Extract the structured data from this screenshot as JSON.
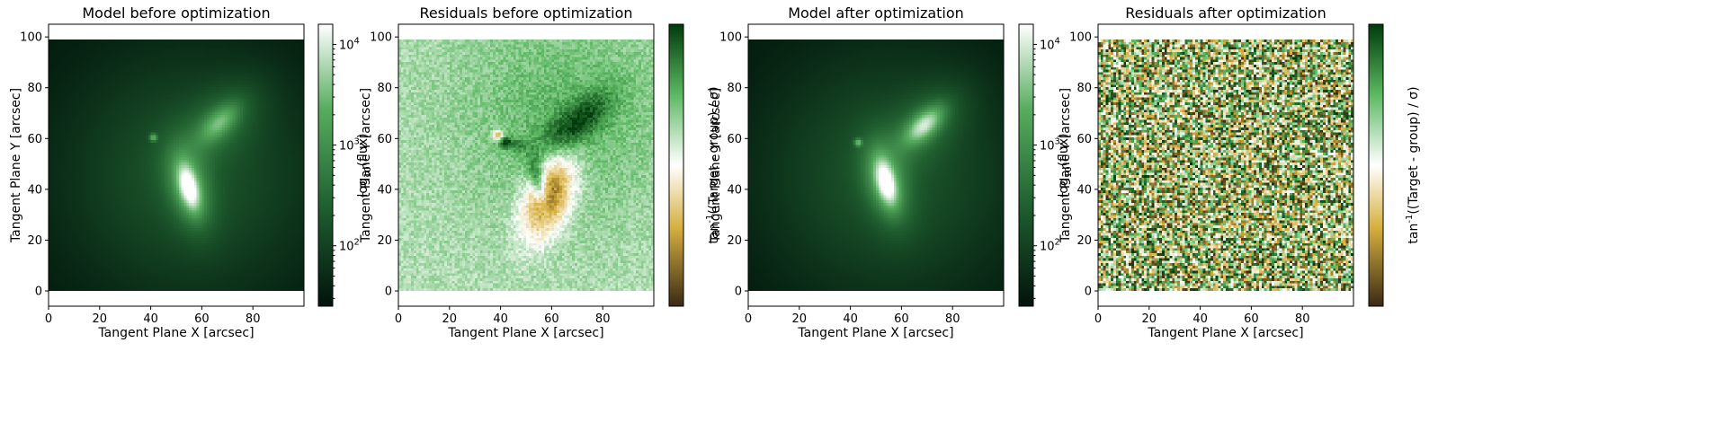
{
  "chart_data": [
    {
      "type": "heatmap",
      "title": "Model before optimization",
      "xlabel": "Tangent Plane X [arcsec]",
      "ylabel": "Tangent Plane Y [arcsec]",
      "xlim": [
        0,
        99
      ],
      "ylim": [
        -6,
        105
      ],
      "xticks": [
        "0",
        "20",
        "40",
        "60",
        "80"
      ],
      "yticks": [
        "0",
        "20",
        "40",
        "60",
        "80",
        "100"
      ],
      "colorbar": {
        "label": "log10(flux)",
        "scale": "log",
        "ticks": [
          "10^2",
          "10^3",
          "10^4"
        ],
        "cmap": [
          "#00140b",
          "#1f5e2f",
          "#57ad5f",
          "#ffffff"
        ]
      },
      "features": [
        {
          "x": 55,
          "y": 40,
          "peak": "bright"
        },
        {
          "x": 67,
          "y": 66,
          "peak": "medium"
        },
        {
          "x": 41,
          "y": 60,
          "peak": "point"
        }
      ]
    },
    {
      "type": "heatmap",
      "title": "Residuals before optimization",
      "xlabel": "Tangent Plane X [arcsec]",
      "ylabel": "Tangent Plane Y [arcsec]",
      "xlim": [
        0,
        99
      ],
      "ylim": [
        -6,
        105
      ],
      "xticks": [
        "0",
        "20",
        "40",
        "60",
        "80"
      ],
      "yticks": [
        "0",
        "20",
        "40",
        "60",
        "80",
        "100"
      ],
      "colorbar": {
        "label": "tan^-1((Target - group) / σ)",
        "scale": "linear",
        "ticks": [],
        "cmap": [
          "#3a2a14",
          "#d7b040",
          "#ffffff",
          "#5cb862",
          "#003b0b"
        ]
      }
    },
    {
      "type": "heatmap",
      "title": "Model after optimization",
      "xlabel": "Tangent Plane X [arcsec]",
      "ylabel": "Tangent Plane Y [arcsec]",
      "xlim": [
        0,
        99
      ],
      "ylim": [
        -6,
        105
      ],
      "xticks": [
        "0",
        "20",
        "40",
        "60",
        "80"
      ],
      "yticks": [
        "0",
        "20",
        "40",
        "60",
        "80",
        "100"
      ],
      "colorbar": {
        "label": "log10(flux)",
        "scale": "log",
        "ticks": [
          "10^2",
          "10^3",
          "10^4"
        ],
        "cmap": [
          "#00140b",
          "#1f5e2f",
          "#57ad5f",
          "#ffffff"
        ]
      },
      "features": [
        {
          "x": 54,
          "y": 42,
          "peak": "bright"
        },
        {
          "x": 69,
          "y": 65,
          "peak": "bright"
        },
        {
          "x": 43,
          "y": 58,
          "peak": "point"
        }
      ]
    },
    {
      "type": "heatmap",
      "title": "Residuals after optimization",
      "xlabel": "Tangent Plane X [arcsec]",
      "ylabel": "Tangent Plane Y [arcsec]",
      "xlim": [
        0,
        99
      ],
      "ylim": [
        -6,
        105
      ],
      "xticks": [
        "0",
        "20",
        "40",
        "60",
        "80"
      ],
      "yticks": [
        "0",
        "20",
        "40",
        "60",
        "80",
        "100"
      ],
      "colorbar": {
        "label": "tan^-1((Target - group) / σ)",
        "scale": "linear",
        "ticks": [],
        "cmap": [
          "#3a2a14",
          "#d7b040",
          "#ffffff",
          "#5cb862",
          "#003b0b"
        ]
      },
      "description": "uniform random noise"
    }
  ]
}
